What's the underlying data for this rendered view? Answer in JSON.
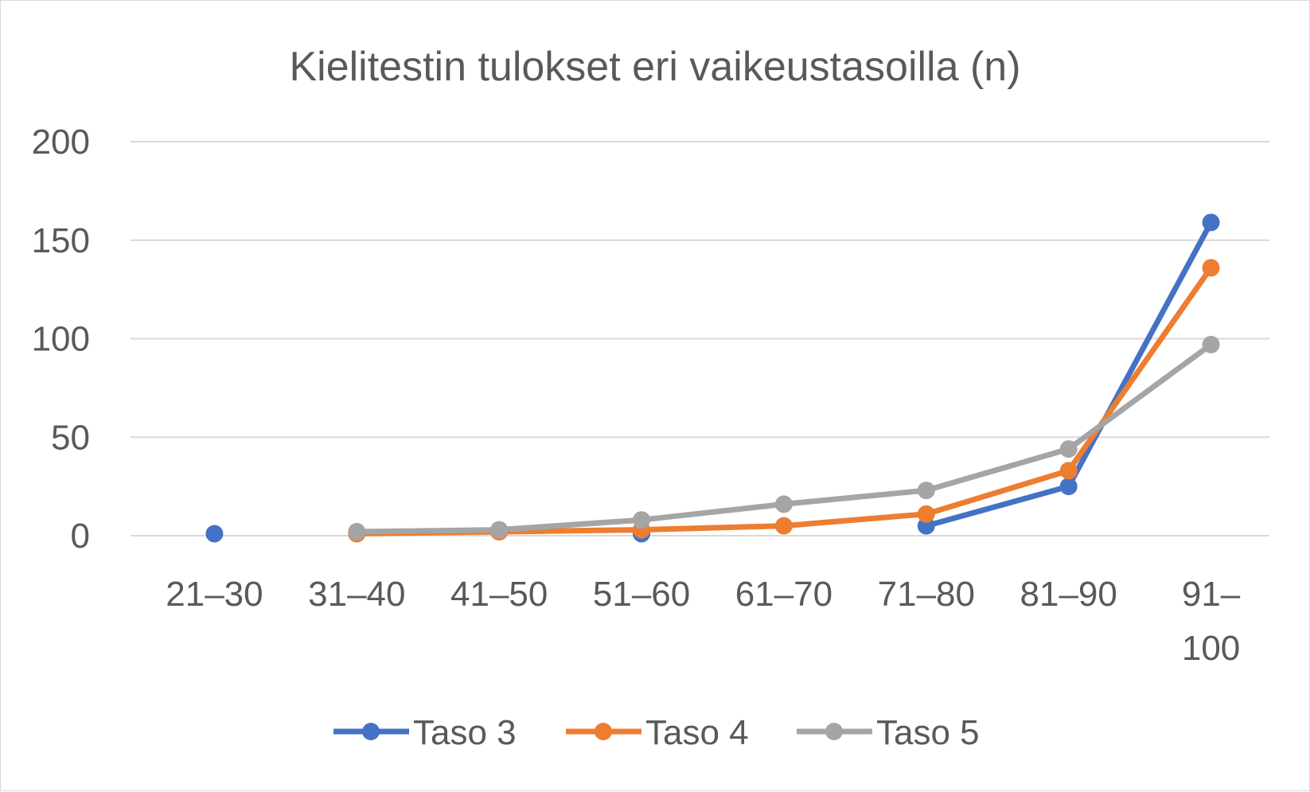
{
  "chart_data": {
    "type": "line",
    "title": "Kielitestin tulokset eri vaikeustasoilla (n)",
    "categories": [
      "21–30",
      "31–40",
      "41–50",
      "51–60",
      "61–70",
      "71–80",
      "81–90",
      "91–100"
    ],
    "category_lines": [
      [
        "21–30"
      ],
      [
        "31–40"
      ],
      [
        "41–50"
      ],
      [
        "51–60"
      ],
      [
        "61–70"
      ],
      [
        "71–80"
      ],
      [
        "81–90"
      ],
      [
        "91–",
        "100"
      ]
    ],
    "ylim": [
      0,
      200
    ],
    "yticks": [
      0,
      50,
      100,
      150,
      200
    ],
    "grid": true,
    "legend_position": "bottom",
    "series": [
      {
        "name": "Taso 3",
        "color": "#4472c4",
        "values": [
          1,
          null,
          null,
          1,
          null,
          5,
          25,
          159
        ]
      },
      {
        "name": "Taso 4",
        "color": "#ed7d31",
        "values": [
          null,
          1,
          2,
          3,
          5,
          11,
          33,
          136
        ]
      },
      {
        "name": "Taso 5",
        "color": "#a5a5a5",
        "values": [
          null,
          2,
          3,
          8,
          16,
          23,
          44,
          97
        ]
      }
    ]
  }
}
